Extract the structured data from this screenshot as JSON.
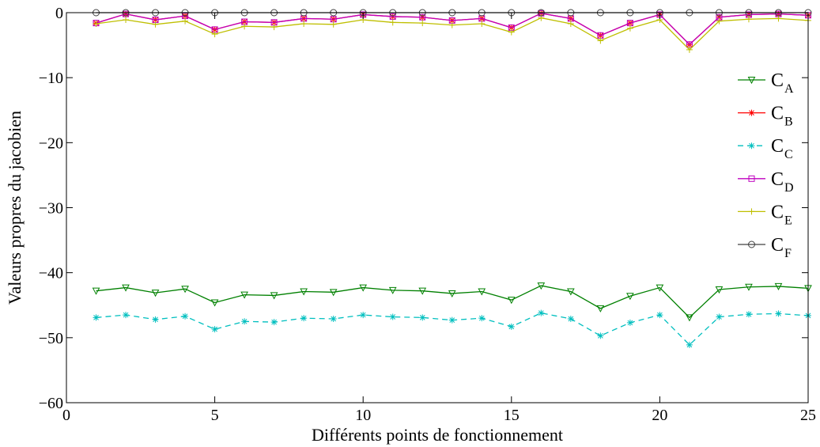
{
  "chart_data": {
    "type": "line",
    "title": "",
    "xlabel": "Différents points de fonctionnement",
    "ylabel": "Valeurs propres du jacobien",
    "xlim": [
      0,
      25
    ],
    "ylim": [
      -60,
      0
    ],
    "xticks": [
      0,
      5,
      10,
      15,
      20,
      25
    ],
    "yticks": [
      0,
      -10,
      -20,
      -30,
      -40,
      -50,
      -60
    ],
    "xtick_labels": [
      "0",
      "5",
      "10",
      "15",
      "20",
      "25"
    ],
    "ytick_labels": [
      "0",
      "−10",
      "−20",
      "−30",
      "−40",
      "−50",
      "−60"
    ],
    "grid": false,
    "legend_position": "right",
    "x": [
      1,
      2,
      3,
      4,
      5,
      6,
      7,
      8,
      9,
      10,
      11,
      12,
      13,
      14,
      15,
      16,
      17,
      18,
      19,
      20,
      21,
      22,
      23,
      24,
      25
    ],
    "series": [
      {
        "name": "C",
        "sub": "A",
        "color": "#008000",
        "dash": "solid",
        "marker": "triangle-down",
        "values": [
          -42.8,
          -42.3,
          -43.1,
          -42.5,
          -44.6,
          -43.4,
          -43.5,
          -42.9,
          -43.0,
          -42.3,
          -42.7,
          -42.8,
          -43.2,
          -42.9,
          -44.2,
          -42.0,
          -42.9,
          -45.5,
          -43.6,
          -42.3,
          -46.9,
          -42.6,
          -42.2,
          -42.1,
          -42.4
        ]
      },
      {
        "name": "C",
        "sub": "B",
        "color": "#ff0000",
        "dash": "solid",
        "marker": "asterisk",
        "values": [
          -1.6,
          -0.2,
          -1.1,
          -0.5,
          -2.6,
          -1.4,
          -1.5,
          -0.9,
          -1.0,
          -0.3,
          -0.6,
          -0.7,
          -1.2,
          -0.9,
          -2.3,
          -0.1,
          -0.9,
          -3.5,
          -1.6,
          -0.3,
          -4.9,
          -0.7,
          -0.3,
          -0.2,
          -0.4
        ]
      },
      {
        "name": "C",
        "sub": "C",
        "color": "#00bfbf",
        "dash": "dashed",
        "marker": "asterisk",
        "values": [
          -46.9,
          -46.5,
          -47.2,
          -46.7,
          -48.7,
          -47.5,
          -47.6,
          -47.0,
          -47.1,
          -46.5,
          -46.8,
          -46.9,
          -47.3,
          -47.0,
          -48.3,
          -46.2,
          -47.1,
          -49.7,
          -47.7,
          -46.5,
          -51.1,
          -46.8,
          -46.4,
          -46.3,
          -46.6
        ]
      },
      {
        "name": "C",
        "sub": "D",
        "color": "#bf00bf",
        "dash": "solid",
        "marker": "square",
        "values": [
          -1.6,
          -0.2,
          -1.1,
          -0.5,
          -2.6,
          -1.4,
          -1.5,
          -0.9,
          -1.0,
          -0.3,
          -0.6,
          -0.7,
          -1.2,
          -0.9,
          -2.3,
          -0.1,
          -0.9,
          -3.5,
          -1.6,
          -0.3,
          -4.9,
          -0.7,
          -0.3,
          -0.2,
          -0.4
        ]
      },
      {
        "name": "C",
        "sub": "E",
        "color": "#bfbf00",
        "dash": "solid",
        "marker": "plus",
        "values": [
          -1.7,
          -1.1,
          -1.8,
          -1.3,
          -3.3,
          -2.1,
          -2.2,
          -1.7,
          -1.8,
          -1.1,
          -1.5,
          -1.6,
          -1.9,
          -1.7,
          -3.0,
          -0.8,
          -1.7,
          -4.3,
          -2.4,
          -1.1,
          -5.7,
          -1.3,
          -1.0,
          -0.9,
          -1.2
        ]
      },
      {
        "name": "C",
        "sub": "F",
        "color": "#404040",
        "dash": "solid",
        "marker": "circle",
        "values": [
          0,
          0,
          0,
          0,
          0,
          0,
          0,
          0,
          0,
          0,
          0,
          0,
          0,
          0,
          0,
          0,
          0,
          0,
          0,
          0,
          0,
          0,
          0,
          0,
          0
        ]
      }
    ]
  }
}
